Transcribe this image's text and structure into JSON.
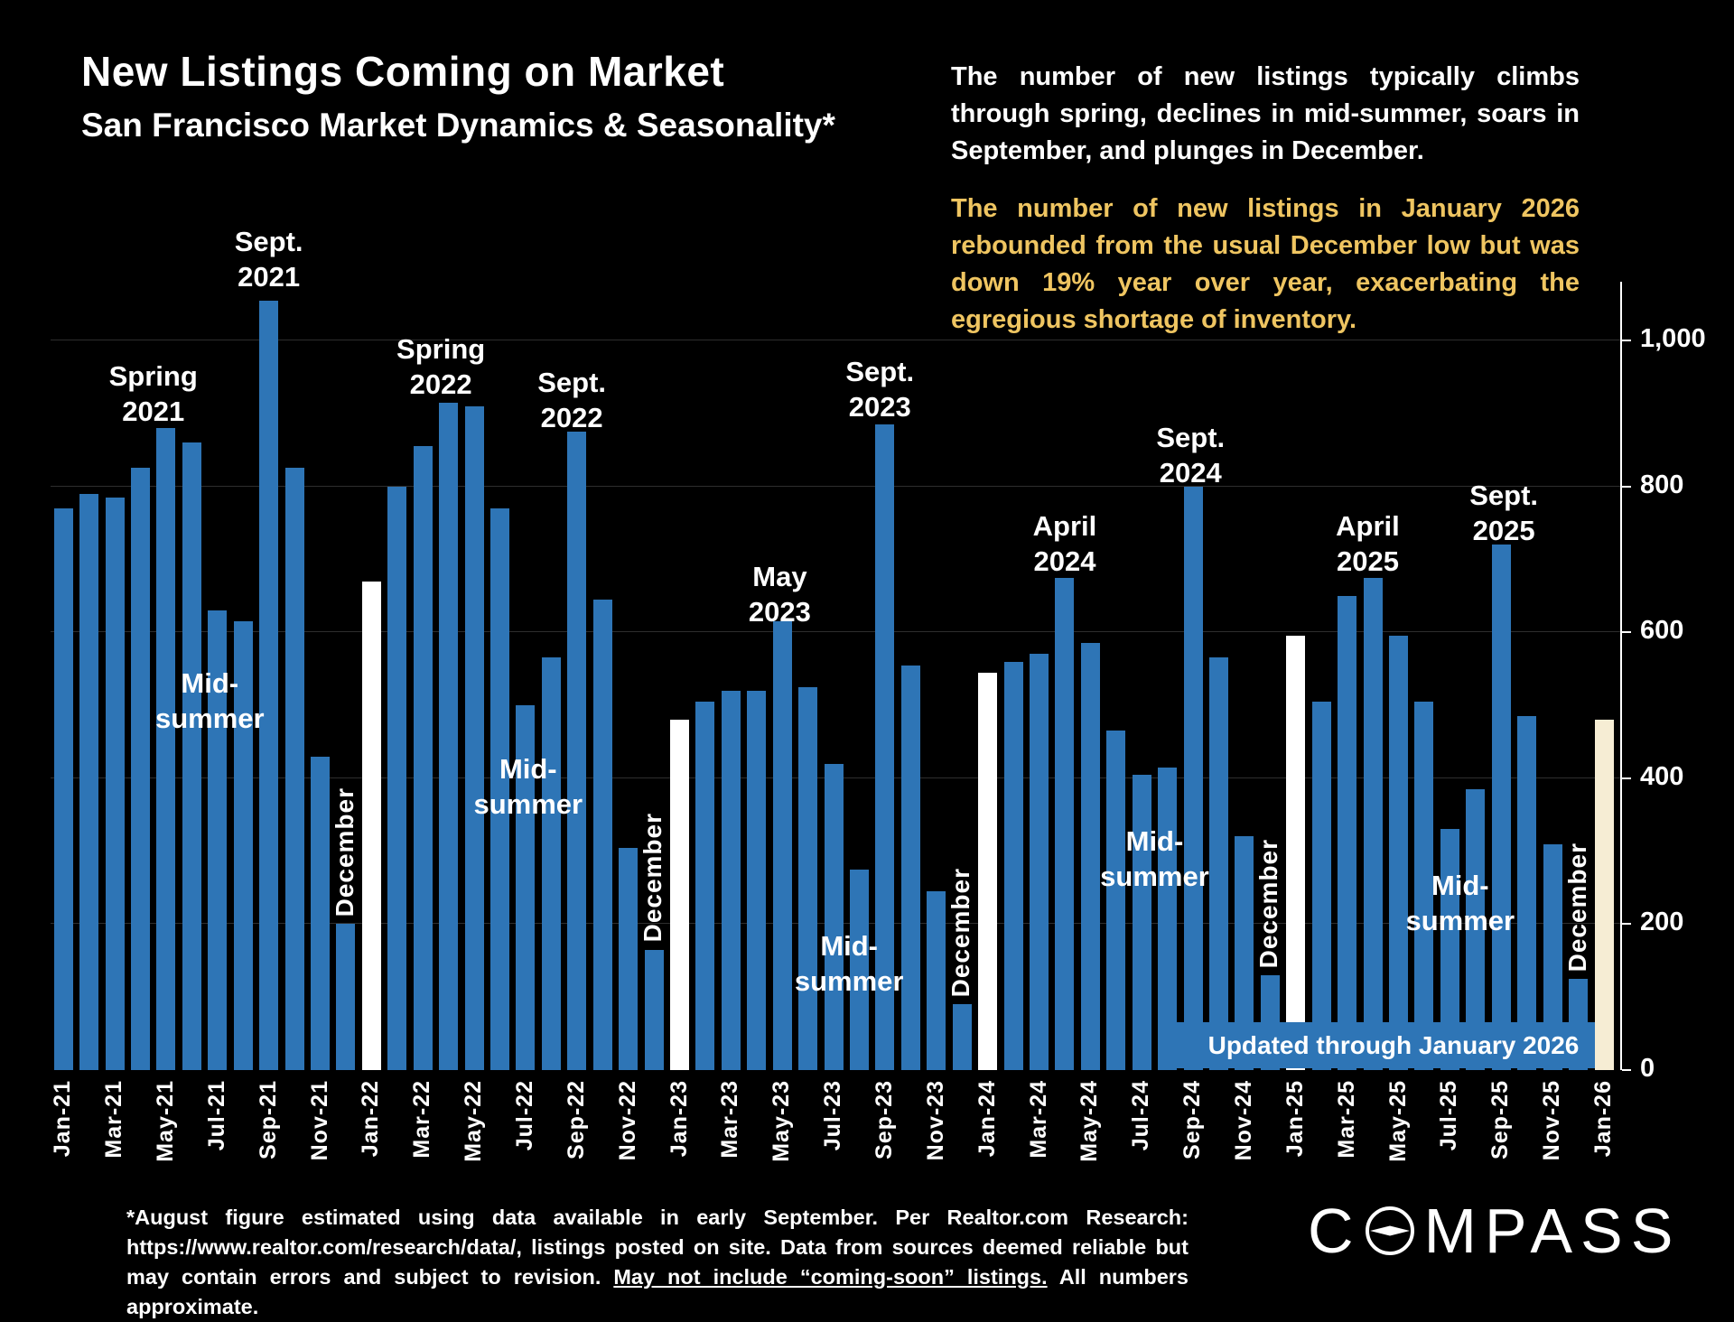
{
  "title": "New Listings Coming on Market",
  "subtitle": "San Francisco Market Dynamics & Seasonality*",
  "commentary_white": "The number of new listings typically climbs through spring, declines in mid-summer, soars in September, and plunges in December.",
  "commentary_gold": "The number of new listings in January 2026 rebounded from the usual December low but was down 19% year over year, exacerbating the egregious shortage of inventory.",
  "banner": "Updated through January 2026",
  "footnote": {
    "part1": "*August figure estimated using data available in early September. Per Realtor.com Research: https://www.realtor.com/research/data/, listings posted on site. Data from sources deemed reliable but may contain errors and subject to revision. ",
    "underlined": "May not include “coming-soon” listings.",
    "part2": " All numbers approximate."
  },
  "logo": {
    "part1": "C",
    "part2": "MPASS",
    "name": "Compass"
  },
  "colors": {
    "background": "#000000",
    "bar_blue": "#2E75B6",
    "bar_white": "#FFFFFF",
    "bar_cream": "#F6EDD4",
    "gold": "#EFC561"
  },
  "y_axis": {
    "ticks": [
      {
        "label": "1,000",
        "value": 1000
      },
      {
        "label": "800",
        "value": 800
      },
      {
        "label": "600",
        "value": 600
      },
      {
        "label": "400",
        "value": 400
      },
      {
        "label": "200",
        "value": 200
      },
      {
        "label": "0",
        "value": 0
      }
    ]
  },
  "chart_data": {
    "type": "bar",
    "title": "New Listings Coming on Market",
    "xlabel": "Month",
    "ylabel": "New listings",
    "ylim": [
      0,
      1100
    ],
    "grid": "faint horizontal gridlines every 200",
    "x": [
      "Jan-21",
      "Feb-21",
      "Mar-21",
      "Apr-21",
      "May-21",
      "Jun-21",
      "Jul-21",
      "Aug-21",
      "Sep-21",
      "Oct-21",
      "Nov-21",
      "Dec-21",
      "Jan-22",
      "Feb-22",
      "Mar-22",
      "Apr-22",
      "May-22",
      "Jun-22",
      "Jul-22",
      "Aug-22",
      "Sep-22",
      "Oct-22",
      "Nov-22",
      "Dec-22",
      "Jan-23",
      "Feb-23",
      "Mar-23",
      "Apr-23",
      "May-23",
      "Jun-23",
      "Jul-23",
      "Aug-23",
      "Sep-23",
      "Oct-23",
      "Nov-23",
      "Dec-23",
      "Jan-24",
      "Feb-24",
      "Mar-24",
      "Apr-24",
      "May-24",
      "Jun-24",
      "Jul-24",
      "Aug-24",
      "Sep-24",
      "Oct-24",
      "Nov-24",
      "Dec-24",
      "Jan-25",
      "Feb-25",
      "Mar-25",
      "Apr-25",
      "May-25",
      "Jun-25",
      "Jul-25",
      "Aug-25",
      "Sep-25",
      "Oct-25",
      "Nov-25",
      "Dec-25",
      "Jan-26"
    ],
    "values": [
      770,
      790,
      785,
      825,
      880,
      860,
      630,
      615,
      1055,
      825,
      430,
      200,
      670,
      800,
      855,
      915,
      910,
      770,
      500,
      565,
      875,
      645,
      305,
      165,
      480,
      505,
      520,
      520,
      615,
      525,
      420,
      275,
      885,
      555,
      245,
      90,
      545,
      560,
      570,
      675,
      585,
      465,
      405,
      415,
      800,
      565,
      320,
      130,
      595,
      505,
      650,
      675,
      595,
      505,
      330,
      385,
      720,
      485,
      310,
      125,
      480
    ],
    "white_bar_months": [
      "Jan-22",
      "Jan-23",
      "Jan-24",
      "Jan-25",
      "Jan-26"
    ],
    "current_month": "Jan-26",
    "december": {
      "label": "December",
      "indices": [
        11,
        23,
        35,
        47,
        59
      ]
    },
    "gridline_values": [
      200,
      400,
      600,
      800,
      1000
    ],
    "annotations": [
      {
        "lines": [
          "Spring",
          "2021"
        ],
        "i": 3.5,
        "v": 975
      },
      {
        "lines": [
          "Sept.",
          "2021"
        ],
        "i": 8,
        "v": 1160
      },
      {
        "lines": [
          "Mid-",
          "summer"
        ],
        "i": 5.7,
        "v": 555
      },
      {
        "lines": [
          "Spring",
          "2022"
        ],
        "i": 14.7,
        "v": 1012
      },
      {
        "lines": [
          "Sept.",
          "2022"
        ],
        "i": 19.8,
        "v": 966
      },
      {
        "lines": [
          "Mid-",
          "summer"
        ],
        "i": 18.1,
        "v": 437
      },
      {
        "lines": [
          "May",
          "2023"
        ],
        "i": 27.9,
        "v": 701
      },
      {
        "lines": [
          "Sept.",
          "2023"
        ],
        "i": 31.8,
        "v": 981
      },
      {
        "lines": [
          "Mid-",
          "summer"
        ],
        "i": 30.6,
        "v": 194
      },
      {
        "lines": [
          "April",
          "2024"
        ],
        "i": 39,
        "v": 770
      },
      {
        "lines": [
          "Sept.",
          "2024"
        ],
        "i": 43.9,
        "v": 891
      },
      {
        "lines": [
          "Mid-",
          "summer"
        ],
        "i": 42.5,
        "v": 338
      },
      {
        "lines": [
          "April",
          "2025"
        ],
        "i": 50.8,
        "v": 770
      },
      {
        "lines": [
          "Sept.",
          "2025"
        ],
        "i": 56.1,
        "v": 812
      },
      {
        "lines": [
          "Mid-",
          "summer"
        ],
        "i": 54.4,
        "v": 277
      }
    ]
  }
}
